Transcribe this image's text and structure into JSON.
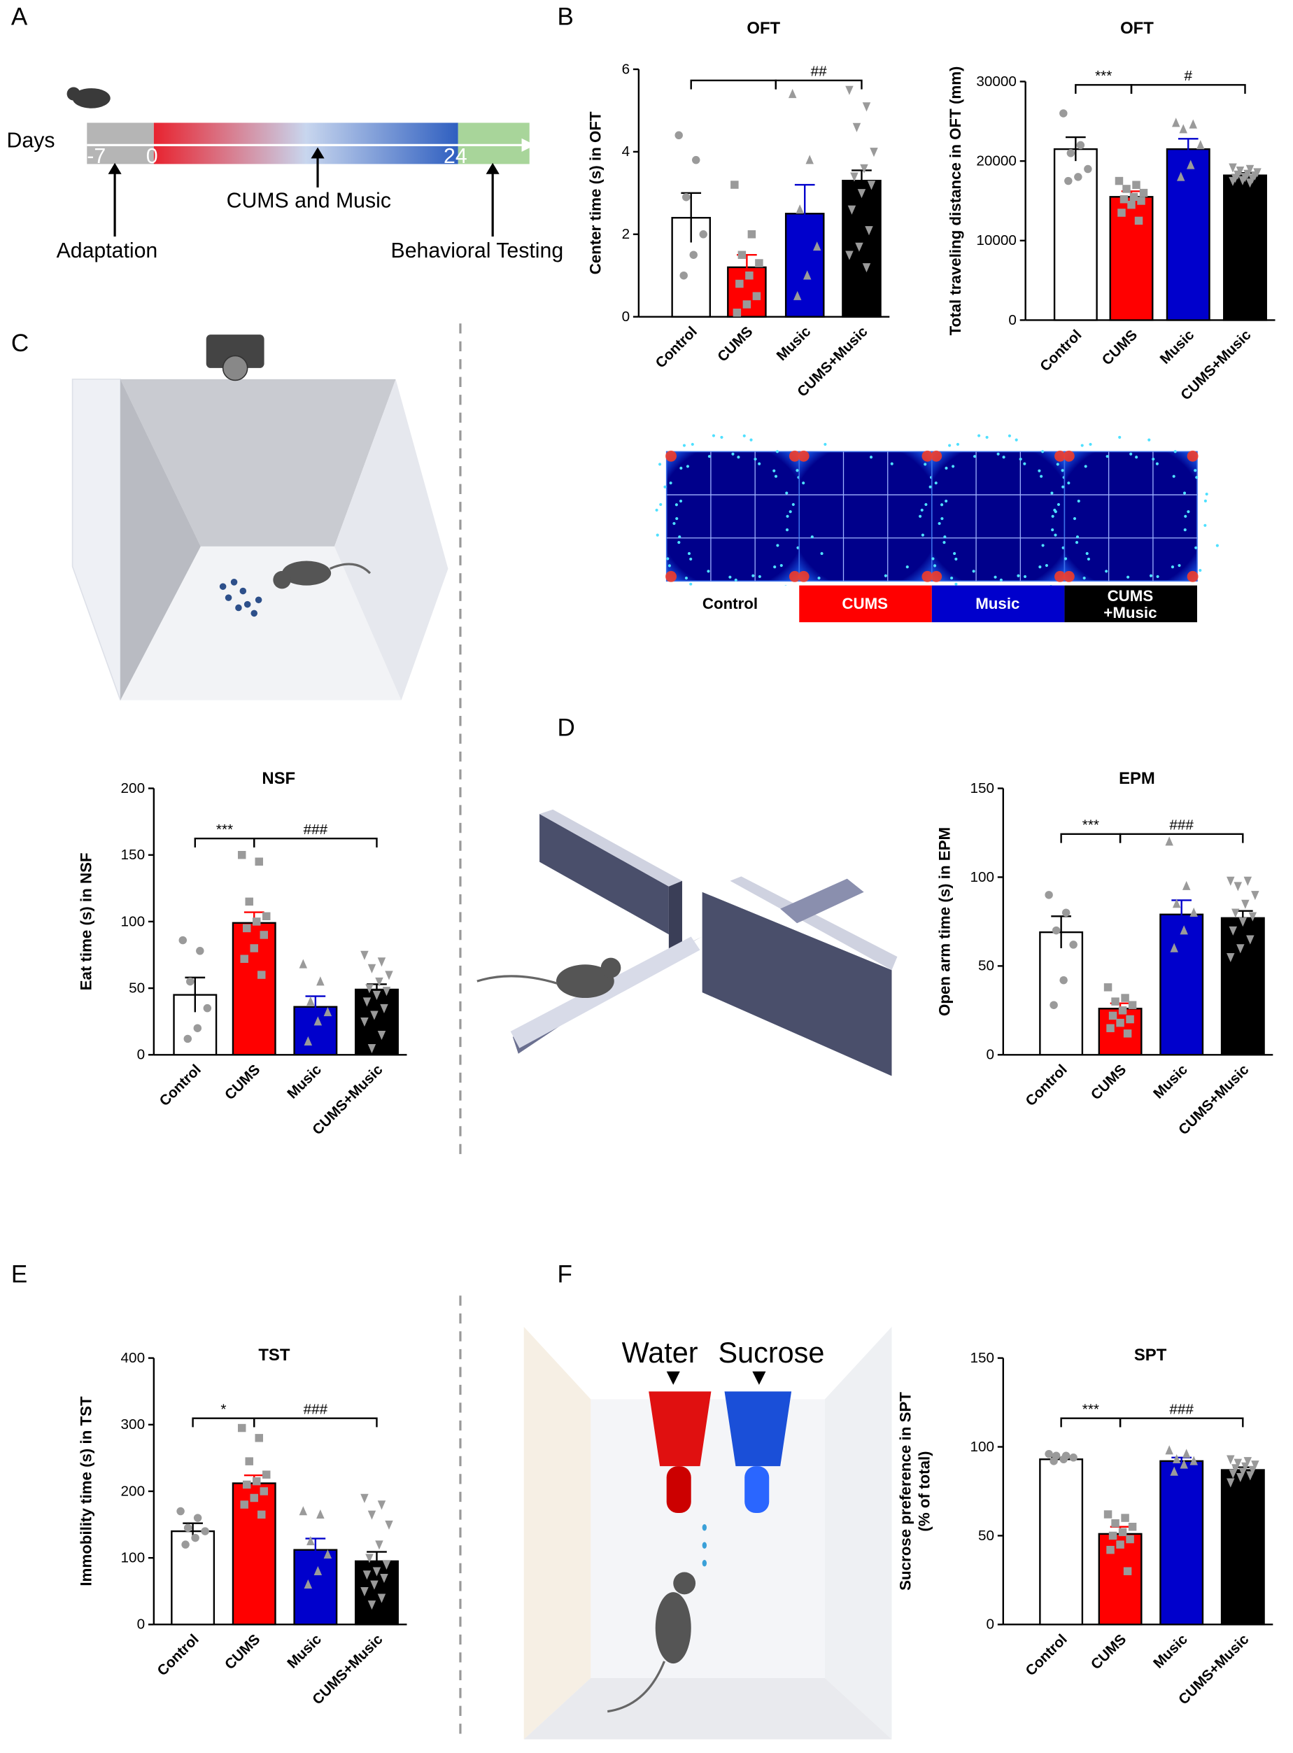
{
  "panels": [
    "A",
    "B",
    "C",
    "D",
    "E",
    "F"
  ],
  "timeline": {
    "days": "Days",
    "marks": [
      "-7",
      "0",
      "24"
    ],
    "phase": "CUMS and Music",
    "start": "Adaptation",
    "end": "Behavioral Testing"
  },
  "heatmap_labels": [
    [
      "Control"
    ],
    [
      "CUMS"
    ],
    [
      "Music"
    ],
    [
      "CUMS",
      "+Music"
    ]
  ],
  "spt": {
    "water": "Water",
    "sucrose": "Sucrose"
  },
  "chart_data": [
    {
      "type": "bar",
      "title": "OFT",
      "ylabel": "Center time (s) in OFT",
      "categories": [
        "Control",
        "CUMS",
        "Music",
        "CUMS+Music"
      ],
      "colors": [
        "#ffffff",
        "#ff0000",
        "#0000cc",
        "#000000"
      ],
      "values": [
        2.4,
        1.2,
        2.5,
        3.3
      ],
      "errors": [
        0.6,
        0.3,
        0.7,
        0.25
      ],
      "points": [
        [
          4.4,
          3.8,
          2.9,
          2.0,
          1.5,
          1.0
        ],
        [
          3.2,
          2.0,
          1.5,
          1.3,
          1.0,
          0.8,
          0.5,
          0.3,
          0.1
        ],
        [
          5.4,
          3.8,
          2.6,
          1.7,
          1.0,
          0.5
        ],
        [
          5.5,
          5.1,
          4.6,
          4.0,
          3.6,
          3.4,
          3.2,
          3.0,
          2.6,
          2.1,
          1.7,
          1.5,
          1.2
        ]
      ],
      "ylim": [
        0,
        6
      ],
      "yticks": [
        0,
        2,
        4,
        6
      ],
      "annotations": [
        "##"
      ]
    },
    {
      "type": "bar",
      "title": "OFT",
      "ylabel": "Total traveling distance in OFT (mm)",
      "categories": [
        "Control",
        "CUMS",
        "Music",
        "CUMS+Music"
      ],
      "colors": [
        "#ffffff",
        "#ff0000",
        "#0000cc",
        "#000000"
      ],
      "values": [
        21500,
        15500,
        21500,
        18200
      ],
      "errors": [
        1500,
        700,
        1300,
        300
      ],
      "points": [
        [
          26000,
          22000,
          21000,
          19000,
          18000,
          17500
        ],
        [
          17500,
          17000,
          16500,
          16000,
          15500,
          15200,
          15000,
          14500,
          13500,
          12500
        ],
        [
          24800,
          24600,
          24000,
          22000,
          19500,
          18000
        ],
        [
          19200,
          19000,
          18800,
          18600,
          18400,
          18300,
          18200,
          18000,
          17900,
          17800,
          17600,
          17500,
          17300
        ]
      ],
      "ylim": [
        0,
        30000
      ],
      "yticks": [
        0,
        10000,
        20000,
        30000
      ],
      "annotations": [
        "***",
        "#"
      ]
    },
    {
      "type": "bar",
      "title": "NSF",
      "ylabel": "Eat  time (s) in NSF",
      "categories": [
        "Control",
        "CUMS",
        "Music",
        "CUMS+Music"
      ],
      "colors": [
        "#ffffff",
        "#ff0000",
        "#0000cc",
        "#000000"
      ],
      "values": [
        45,
        99,
        36,
        49
      ],
      "errors": [
        13,
        8,
        8,
        4
      ],
      "points": [
        [
          86,
          78,
          55,
          35,
          20,
          12
        ],
        [
          150,
          145,
          115,
          104,
          100,
          95,
          90,
          80,
          72,
          60
        ],
        [
          68,
          55,
          40,
          32,
          25,
          10
        ],
        [
          75,
          70,
          65,
          60,
          55,
          50,
          48,
          45,
          40,
          35,
          30,
          25,
          15,
          5
        ]
      ],
      "ylim": [
        0,
        200
      ],
      "yticks": [
        0,
        50,
        100,
        150,
        200
      ],
      "annotations": [
        "***",
        "###"
      ]
    },
    {
      "type": "bar",
      "title": "EPM",
      "ylabel": "Open arm time (s) in EPM",
      "categories": [
        "Control",
        "CUMS",
        "Music",
        "CUMS+Music"
      ],
      "colors": [
        "#ffffff",
        "#ff0000",
        "#0000cc",
        "#000000"
      ],
      "values": [
        69,
        26,
        79,
        77
      ],
      "errors": [
        9,
        3,
        8,
        4
      ],
      "points": [
        [
          90,
          80,
          70,
          62,
          42,
          28
        ],
        [
          38,
          32,
          30,
          28,
          25,
          22,
          20,
          18,
          15,
          12
        ],
        [
          120,
          95,
          85,
          80,
          70,
          60
        ],
        [
          98,
          98,
          95,
          90,
          85,
          80,
          78,
          75,
          70,
          65,
          60,
          55
        ]
      ],
      "ylim": [
        0,
        150
      ],
      "yticks": [
        0,
        50,
        100,
        150
      ],
      "annotations": [
        "***",
        "###"
      ]
    },
    {
      "type": "bar",
      "title": "TST",
      "ylabel": "Immobility time (s) in TST",
      "categories": [
        "Control",
        "CUMS",
        "Music",
        "CUMS+Music"
      ],
      "colors": [
        "#ffffff",
        "#ff0000",
        "#0000cc",
        "#000000"
      ],
      "values": [
        140,
        212,
        112,
        95
      ],
      "errors": [
        12,
        12,
        17,
        14
      ],
      "points": [
        [
          170,
          160,
          145,
          140,
          130,
          120
        ],
        [
          295,
          280,
          245,
          225,
          215,
          210,
          200,
          190,
          180,
          165
        ],
        [
          170,
          165,
          125,
          105,
          80,
          60
        ],
        [
          190,
          180,
          165,
          150,
          120,
          100,
          90,
          80,
          75,
          70,
          60,
          50,
          40,
          30
        ]
      ],
      "ylim": [
        0,
        400
      ],
      "yticks": [
        0,
        100,
        200,
        300,
        400
      ],
      "annotations": [
        "*",
        "###"
      ]
    },
    {
      "type": "bar",
      "title": "SPT",
      "ylabel": [
        "Sucrose preference in SPT",
        "(% of total)"
      ],
      "categories": [
        "Control",
        "CUMS",
        "Music",
        "CUMS+Music"
      ],
      "colors": [
        "#ffffff",
        "#ff0000",
        "#0000cc",
        "#000000"
      ],
      "values": [
        93,
        51,
        92,
        87
      ],
      "errors": [
        1,
        4,
        2,
        1.5
      ],
      "points": [
        [
          96,
          95,
          95,
          94,
          93,
          92
        ],
        [
          62,
          60,
          57,
          55,
          52,
          50,
          48,
          45,
          42,
          30
        ],
        [
          98,
          96,
          93,
          92,
          90,
          86
        ],
        [
          93,
          92,
          91,
          90,
          89,
          88,
          87,
          86,
          85,
          84,
          83,
          80
        ]
      ],
      "ylim": [
        0,
        150
      ],
      "yticks": [
        0,
        50,
        100,
        150
      ],
      "annotations": [
        "***",
        "###"
      ]
    }
  ]
}
